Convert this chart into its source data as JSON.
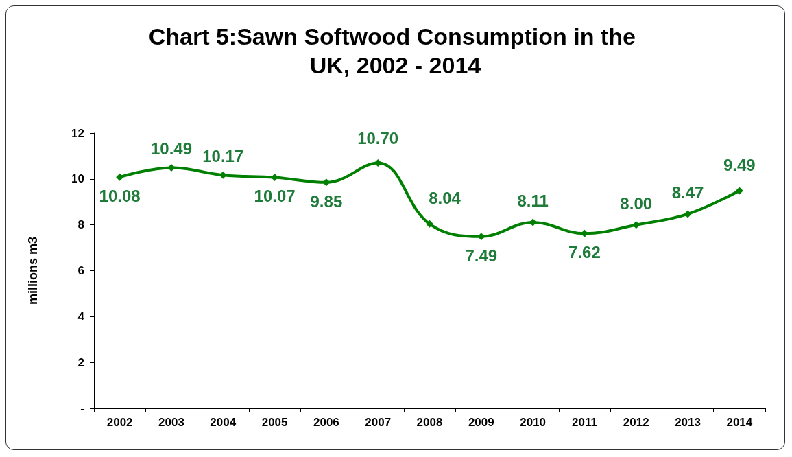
{
  "chart_data": {
    "type": "line",
    "title": "Chart 5:Sawn Softwood Consumption in the UK, 2002 - 2014",
    "ylabel": "millions m3",
    "categories": [
      "2002",
      "2003",
      "2004",
      "2005",
      "2006",
      "2007",
      "2008",
      "2009",
      "2010",
      "2011",
      "2012",
      "2013",
      "2014"
    ],
    "series": [
      {
        "color": "#008000",
        "values": [
          10.08,
          10.49,
          10.17,
          10.07,
          9.85,
          10.7,
          8.04,
          7.49,
          8.11,
          7.62,
          8.0,
          8.47,
          9.49
        ],
        "value_labels": [
          "10.08",
          "10.49",
          "10.17",
          "10.07",
          "9.85",
          "10.70",
          "8.04",
          "7.49",
          "8.11",
          "7.62",
          "8.00",
          "8.47",
          "9.49"
        ]
      }
    ],
    "ylim": [
      0,
      12
    ],
    "yticks": [
      {
        "value": 0,
        "label": "-"
      },
      2,
      4,
      6,
      8,
      10,
      12
    ],
    "marker": "diamond",
    "line_style": "solid",
    "grid": false
  }
}
